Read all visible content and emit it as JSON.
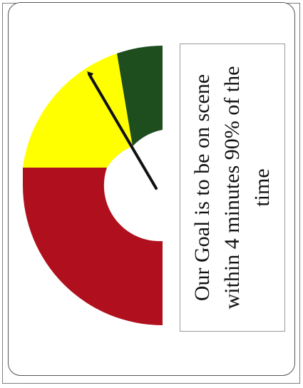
{
  "goal": {
    "line1": "Our Goal is to be on scene",
    "line2": "within 4 minutes 90% of the",
    "line3": "time"
  },
  "gauge": {
    "needle_color": "#111111",
    "zones": [
      {
        "name": "red-zone",
        "color": "#B0101E"
      },
      {
        "name": "yellow-zone",
        "color": "#FFFF00"
      },
      {
        "name": "green-zone",
        "color": "#1E4D1E"
      }
    ]
  }
}
